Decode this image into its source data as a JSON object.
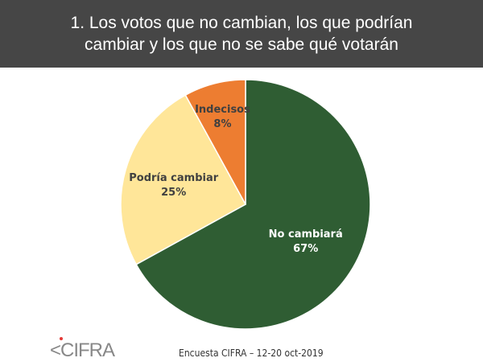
{
  "header": {
    "title": "1. Los votos que no cambian, los que podrían cambiar y los que no se sabe qué votarán"
  },
  "chart_data": {
    "type": "pie",
    "title": "1. Los votos que no cambian, los que podrían cambiar y los que no se sabe qué votarán",
    "slices": [
      {
        "label": "No cambiará",
        "value": 67,
        "value_label": "67%",
        "color": "#2f5d33",
        "text_color": "#ffffff"
      },
      {
        "label": "Podría cambiar",
        "value": 25,
        "value_label": "25%",
        "color": "#ffe699",
        "text_color": "#404040"
      },
      {
        "label": "Indecisos",
        "value": 8,
        "value_label": "8%",
        "color": "#ed7d31",
        "text_color": "#404040"
      }
    ],
    "start": "top",
    "direction": "clockwise"
  },
  "footer": {
    "logo": "CIFRA",
    "source": "Encuesta CIFRA – 12-20 oct-2019"
  }
}
